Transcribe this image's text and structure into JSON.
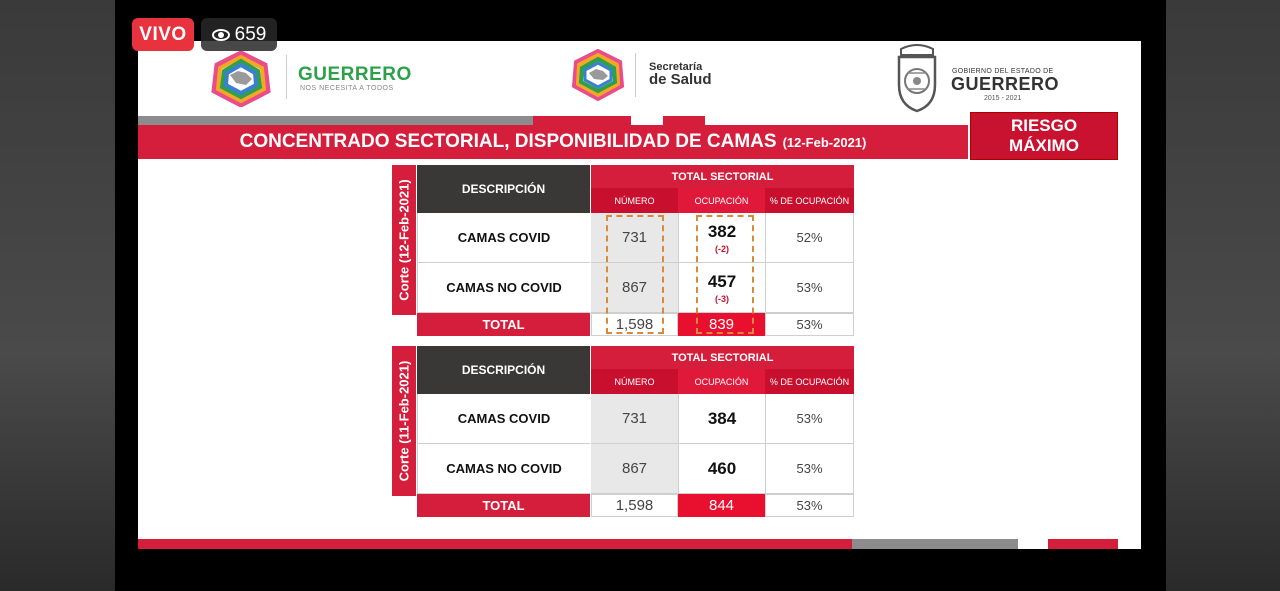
{
  "live": {
    "label": "VIVO",
    "viewers": "659"
  },
  "header": {
    "guerrero_title": "GUERRERO",
    "guerrero_tagline": "NOS NECESITA A TODOS",
    "salud_line1": "Secretaría",
    "salud_line2": "de Salud",
    "gob_line1": "GOBIERNO DEL ESTADO DE",
    "gob_line2": "GUERRERO",
    "gob_line3": "2015 - 2021"
  },
  "title": {
    "main": "CONCENTRADO SECTORIAL, DISPONIBILIDAD DE CAMAS",
    "date": "(12-Feb-2021)"
  },
  "risk": {
    "line1": "RIESGO",
    "line2": "MÁXIMO"
  },
  "tables": [
    {
      "side_label": "Corte (12-Feb-2021)",
      "headers": {
        "descripcion": "DESCRIPCIÓN",
        "total": "TOTAL SECTORIAL",
        "numero": "NÚMERO",
        "ocupacion": "OCUPACIÓN",
        "pct": "% DE OCUPACIÓN"
      },
      "rows": [
        {
          "desc": "CAMAS COVID",
          "numero": "731",
          "ocupacion": "382",
          "delta": "(-2)",
          "pct": "52%"
        },
        {
          "desc": "CAMAS NO COVID",
          "numero": "867",
          "ocupacion": "457",
          "delta": "(-3)",
          "pct": "53%"
        }
      ],
      "total": {
        "desc": "TOTAL",
        "numero": "1,598",
        "ocupacion": "839",
        "pct": "53%"
      }
    },
    {
      "side_label": "Corte (11-Feb-2021)",
      "headers": {
        "descripcion": "DESCRIPCIÓN",
        "total": "TOTAL SECTORIAL",
        "numero": "NÚMERO",
        "ocupacion": "OCUPACIÓN",
        "pct": "% DE OCUPACIÓN"
      },
      "rows": [
        {
          "desc": "CAMAS COVID",
          "numero": "731",
          "ocupacion": "384",
          "pct": "53%"
        },
        {
          "desc": "CAMAS NO COVID",
          "numero": "867",
          "ocupacion": "460",
          "pct": "53%"
        }
      ],
      "total": {
        "desc": "TOTAL",
        "numero": "1,598",
        "ocupacion": "844",
        "pct": "53%"
      }
    }
  ],
  "colors": {
    "brand_red": "#d51e3b",
    "dark_header": "#3a3836",
    "green": "#2fa04a",
    "dash_orange": "#d88a3a"
  }
}
